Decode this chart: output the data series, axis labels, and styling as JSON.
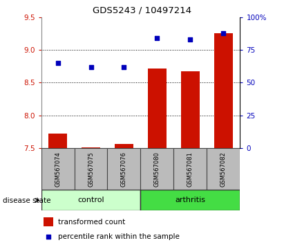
{
  "title": "GDS5243 / 10497214",
  "samples": [
    "GSM567074",
    "GSM567075",
    "GSM567076",
    "GSM567080",
    "GSM567081",
    "GSM567082"
  ],
  "groups": [
    "control",
    "control",
    "control",
    "arthritis",
    "arthritis",
    "arthritis"
  ],
  "transformed_count": [
    7.72,
    7.51,
    7.56,
    8.72,
    8.67,
    9.25
  ],
  "percentile_rank": [
    65,
    62,
    62,
    84,
    83,
    88
  ],
  "ylim_left": [
    7.5,
    9.5
  ],
  "ylim_right": [
    0,
    100
  ],
  "yticks_left": [
    7.5,
    8.0,
    8.5,
    9.0,
    9.5
  ],
  "yticks_right": [
    0,
    25,
    50,
    75,
    100
  ],
  "yticklabels_right": [
    "0",
    "25",
    "50",
    "75",
    "100%"
  ],
  "bar_color": "#cc1100",
  "dot_color": "#0000bb",
  "control_color": "#ccffcc",
  "arthritis_color": "#44dd44",
  "label_bg_color": "#bbbbbb",
  "bar_bottom": 7.5,
  "legend_bar_label": "transformed count",
  "legend_dot_label": "percentile rank within the sample",
  "disease_state_label": "disease state",
  "group_label_control": "control",
  "group_label_arthritis": "arthritis",
  "grid_yticks": [
    8.0,
    8.5,
    9.0
  ],
  "left_tick_color": "#cc1100",
  "right_tick_color": "#0000bb"
}
